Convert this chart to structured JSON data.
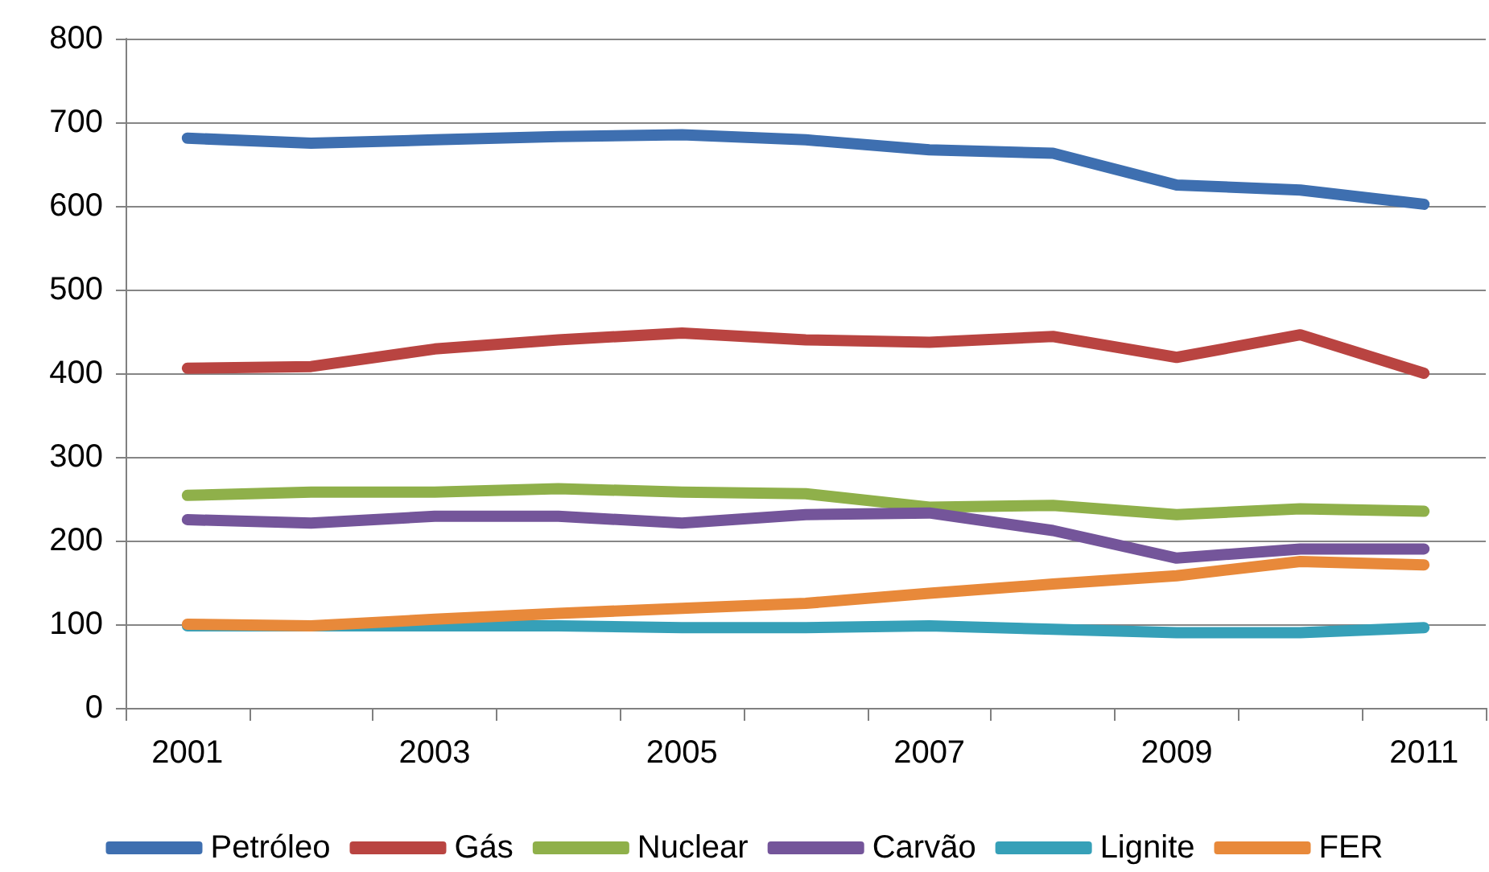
{
  "chart_data": {
    "type": "line",
    "categories": [
      "2001",
      null,
      "2003",
      null,
      "2005",
      null,
      "2007",
      null,
      "2009",
      null,
      "2011"
    ],
    "ylim": [
      0,
      800
    ],
    "yticks": [
      0,
      100,
      200,
      300,
      400,
      500,
      600,
      700,
      800
    ],
    "grid": "y",
    "legend": "bottom",
    "marker": "none",
    "line_style": "solid",
    "series": [
      {
        "name": "Petróleo",
        "color": "#3e6fb0",
        "values": [
          681,
          675,
          679,
          683,
          685,
          679,
          667,
          663,
          625,
          619,
          602
        ]
      },
      {
        "name": "Gás",
        "color": "#b94441",
        "values": [
          406,
          408,
          429,
          440,
          448,
          440,
          437,
          444,
          419,
          446,
          400
        ]
      },
      {
        "name": "Nuclear",
        "color": "#8fb04a",
        "values": [
          254,
          258,
          258,
          262,
          258,
          256,
          240,
          242,
          231,
          238,
          235
        ]
      },
      {
        "name": "Carvão",
        "color": "#74559a",
        "values": [
          225,
          221,
          229,
          229,
          221,
          231,
          233,
          212,
          179,
          190,
          190
        ]
      },
      {
        "name": "Lignite",
        "color": "#36a0b8",
        "values": [
          98,
          98,
          98,
          98,
          96,
          96,
          98,
          94,
          90,
          90,
          96
        ]
      },
      {
        "name": "FER",
        "color": "#e8893a",
        "values": [
          100,
          98,
          106,
          113,
          119,
          125,
          137,
          148,
          158,
          175,
          171
        ]
      }
    ]
  }
}
